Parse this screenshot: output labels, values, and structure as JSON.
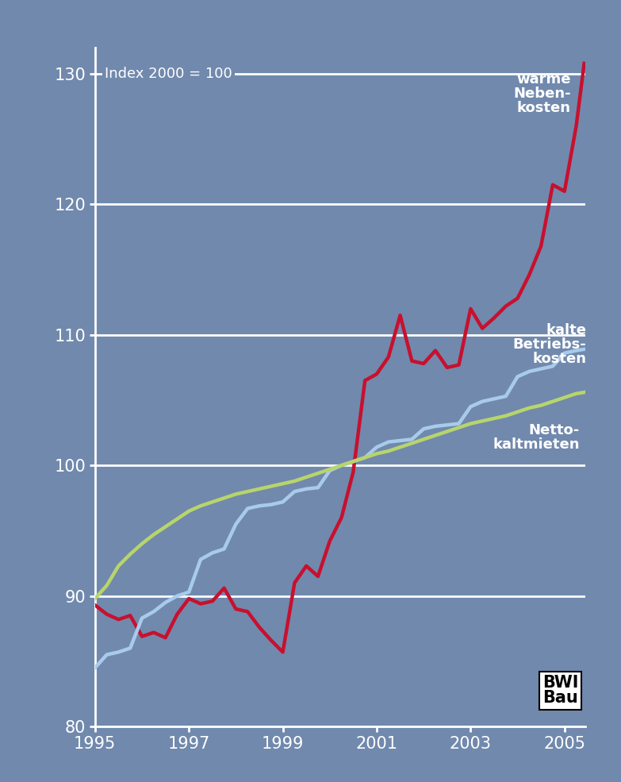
{
  "chart_data": {
    "type": "line",
    "annotations": [
      "Index 2000 = 100",
      "BWI\nBau"
    ],
    "x": [
      1995.0,
      1995.25,
      1995.5,
      1995.75,
      1996.0,
      1996.25,
      1996.5,
      1996.75,
      1997.0,
      1997.25,
      1997.5,
      1997.75,
      1998.0,
      1998.25,
      1998.5,
      1998.75,
      1999.0,
      1999.25,
      1999.5,
      1999.75,
      2000.0,
      2000.25,
      2000.5,
      2000.75,
      2001.0,
      2001.25,
      2001.5,
      2001.75,
      2002.0,
      2002.25,
      2002.5,
      2002.75,
      2003.0,
      2003.25,
      2003.5,
      2003.75,
      2004.0,
      2004.25,
      2004.5,
      2004.75,
      2005.0,
      2005.25,
      2005.42
    ],
    "series": [
      {
        "name": "warme\nNeben-\nkosten",
        "color": "#c8102e",
        "values": [
          89.3,
          88.6,
          88.2,
          88.5,
          86.9,
          87.2,
          86.8,
          88.6,
          89.8,
          89.4,
          89.6,
          90.6,
          89.0,
          88.8,
          87.6,
          86.6,
          85.7,
          91.0,
          92.3,
          91.5,
          94.2,
          96.0,
          99.5,
          106.5,
          107.0,
          108.3,
          111.5,
          108.0,
          107.8,
          108.8,
          107.5,
          107.7,
          112.0,
          110.5,
          111.3,
          112.2,
          112.8,
          114.6,
          116.8,
          121.5,
          121.0,
          126.0,
          130.8
        ]
      },
      {
        "name": "kalte\nBetriebs-\nkosten",
        "color": "#a9cbeb",
        "values": [
          84.5,
          85.5,
          85.7,
          86.0,
          88.3,
          88.8,
          89.5,
          90.0,
          90.3,
          92.8,
          93.3,
          93.6,
          95.5,
          96.7,
          96.9,
          97.0,
          97.2,
          98.0,
          98.2,
          98.3,
          99.6,
          100.0,
          100.3,
          100.6,
          101.4,
          101.8,
          101.9,
          102.0,
          102.8,
          103.0,
          103.1,
          103.2,
          104.5,
          104.9,
          105.1,
          105.3,
          106.8,
          107.2,
          107.4,
          107.6,
          108.6,
          108.8,
          108.9
        ]
      },
      {
        "name": "Netto-\nkaltmieten",
        "color": "#b7d56b",
        "values": [
          89.8,
          90.8,
          92.3,
          93.2,
          94.0,
          94.7,
          95.3,
          95.9,
          96.5,
          96.9,
          97.2,
          97.5,
          97.8,
          98.0,
          98.2,
          98.4,
          98.6,
          98.8,
          99.1,
          99.4,
          99.7,
          100.0,
          100.3,
          100.6,
          100.9,
          101.1,
          101.4,
          101.7,
          102.0,
          102.3,
          102.6,
          102.9,
          103.2,
          103.4,
          103.6,
          103.8,
          104.1,
          104.4,
          104.6,
          104.9,
          105.2,
          105.5,
          105.6
        ]
      }
    ],
    "xlim": [
      1995.0,
      2005.45
    ],
    "xticks": [
      1995,
      1997,
      1999,
      2001,
      2003,
      2005
    ],
    "ylim": [
      80,
      132
    ],
    "yticks": [
      80,
      90,
      100,
      110,
      120,
      130
    ],
    "grid": true
  }
}
